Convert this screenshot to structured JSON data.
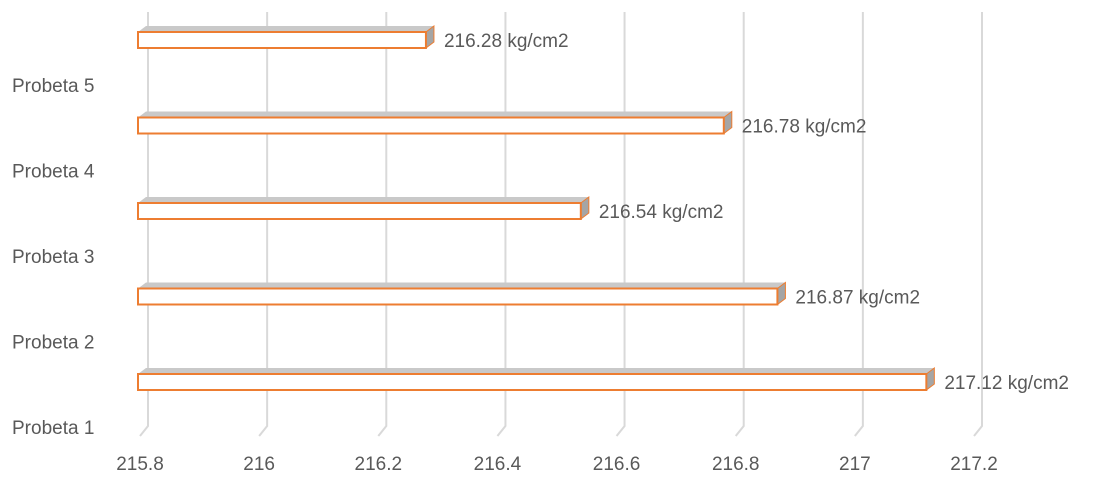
{
  "chart_data": {
    "type": "bar",
    "orientation": "horizontal",
    "style": "3d-clustered-bar",
    "categories": [
      "Probeta 1",
      "Probeta 2",
      "Probeta 3",
      "Probeta 4",
      "Probeta 5"
    ],
    "values": [
      217.12,
      216.87,
      216.54,
      216.78,
      216.28
    ],
    "data_labels": [
      "217.12 kg/cm2",
      "216.87 kg/cm2",
      "216.54 kg/cm2",
      "216.78 kg/cm2",
      "216.28 kg/cm2"
    ],
    "x_ticks": [
      "215.8",
      "216",
      "216.2",
      "216.4",
      "216.6",
      "216.8",
      "217",
      "217.2"
    ],
    "xlim": [
      215.8,
      217.2
    ],
    "title": "",
    "xlabel": "",
    "ylabel": "",
    "grid": true,
    "legend": "none",
    "colors": {
      "bar_fill": "#ffffff",
      "bar_border": "#ed7d31",
      "bar_side": "#a5a5a5",
      "bar_top": "#c9c9c9",
      "gridline": "#d9d9d9",
      "text": "#595959"
    }
  }
}
